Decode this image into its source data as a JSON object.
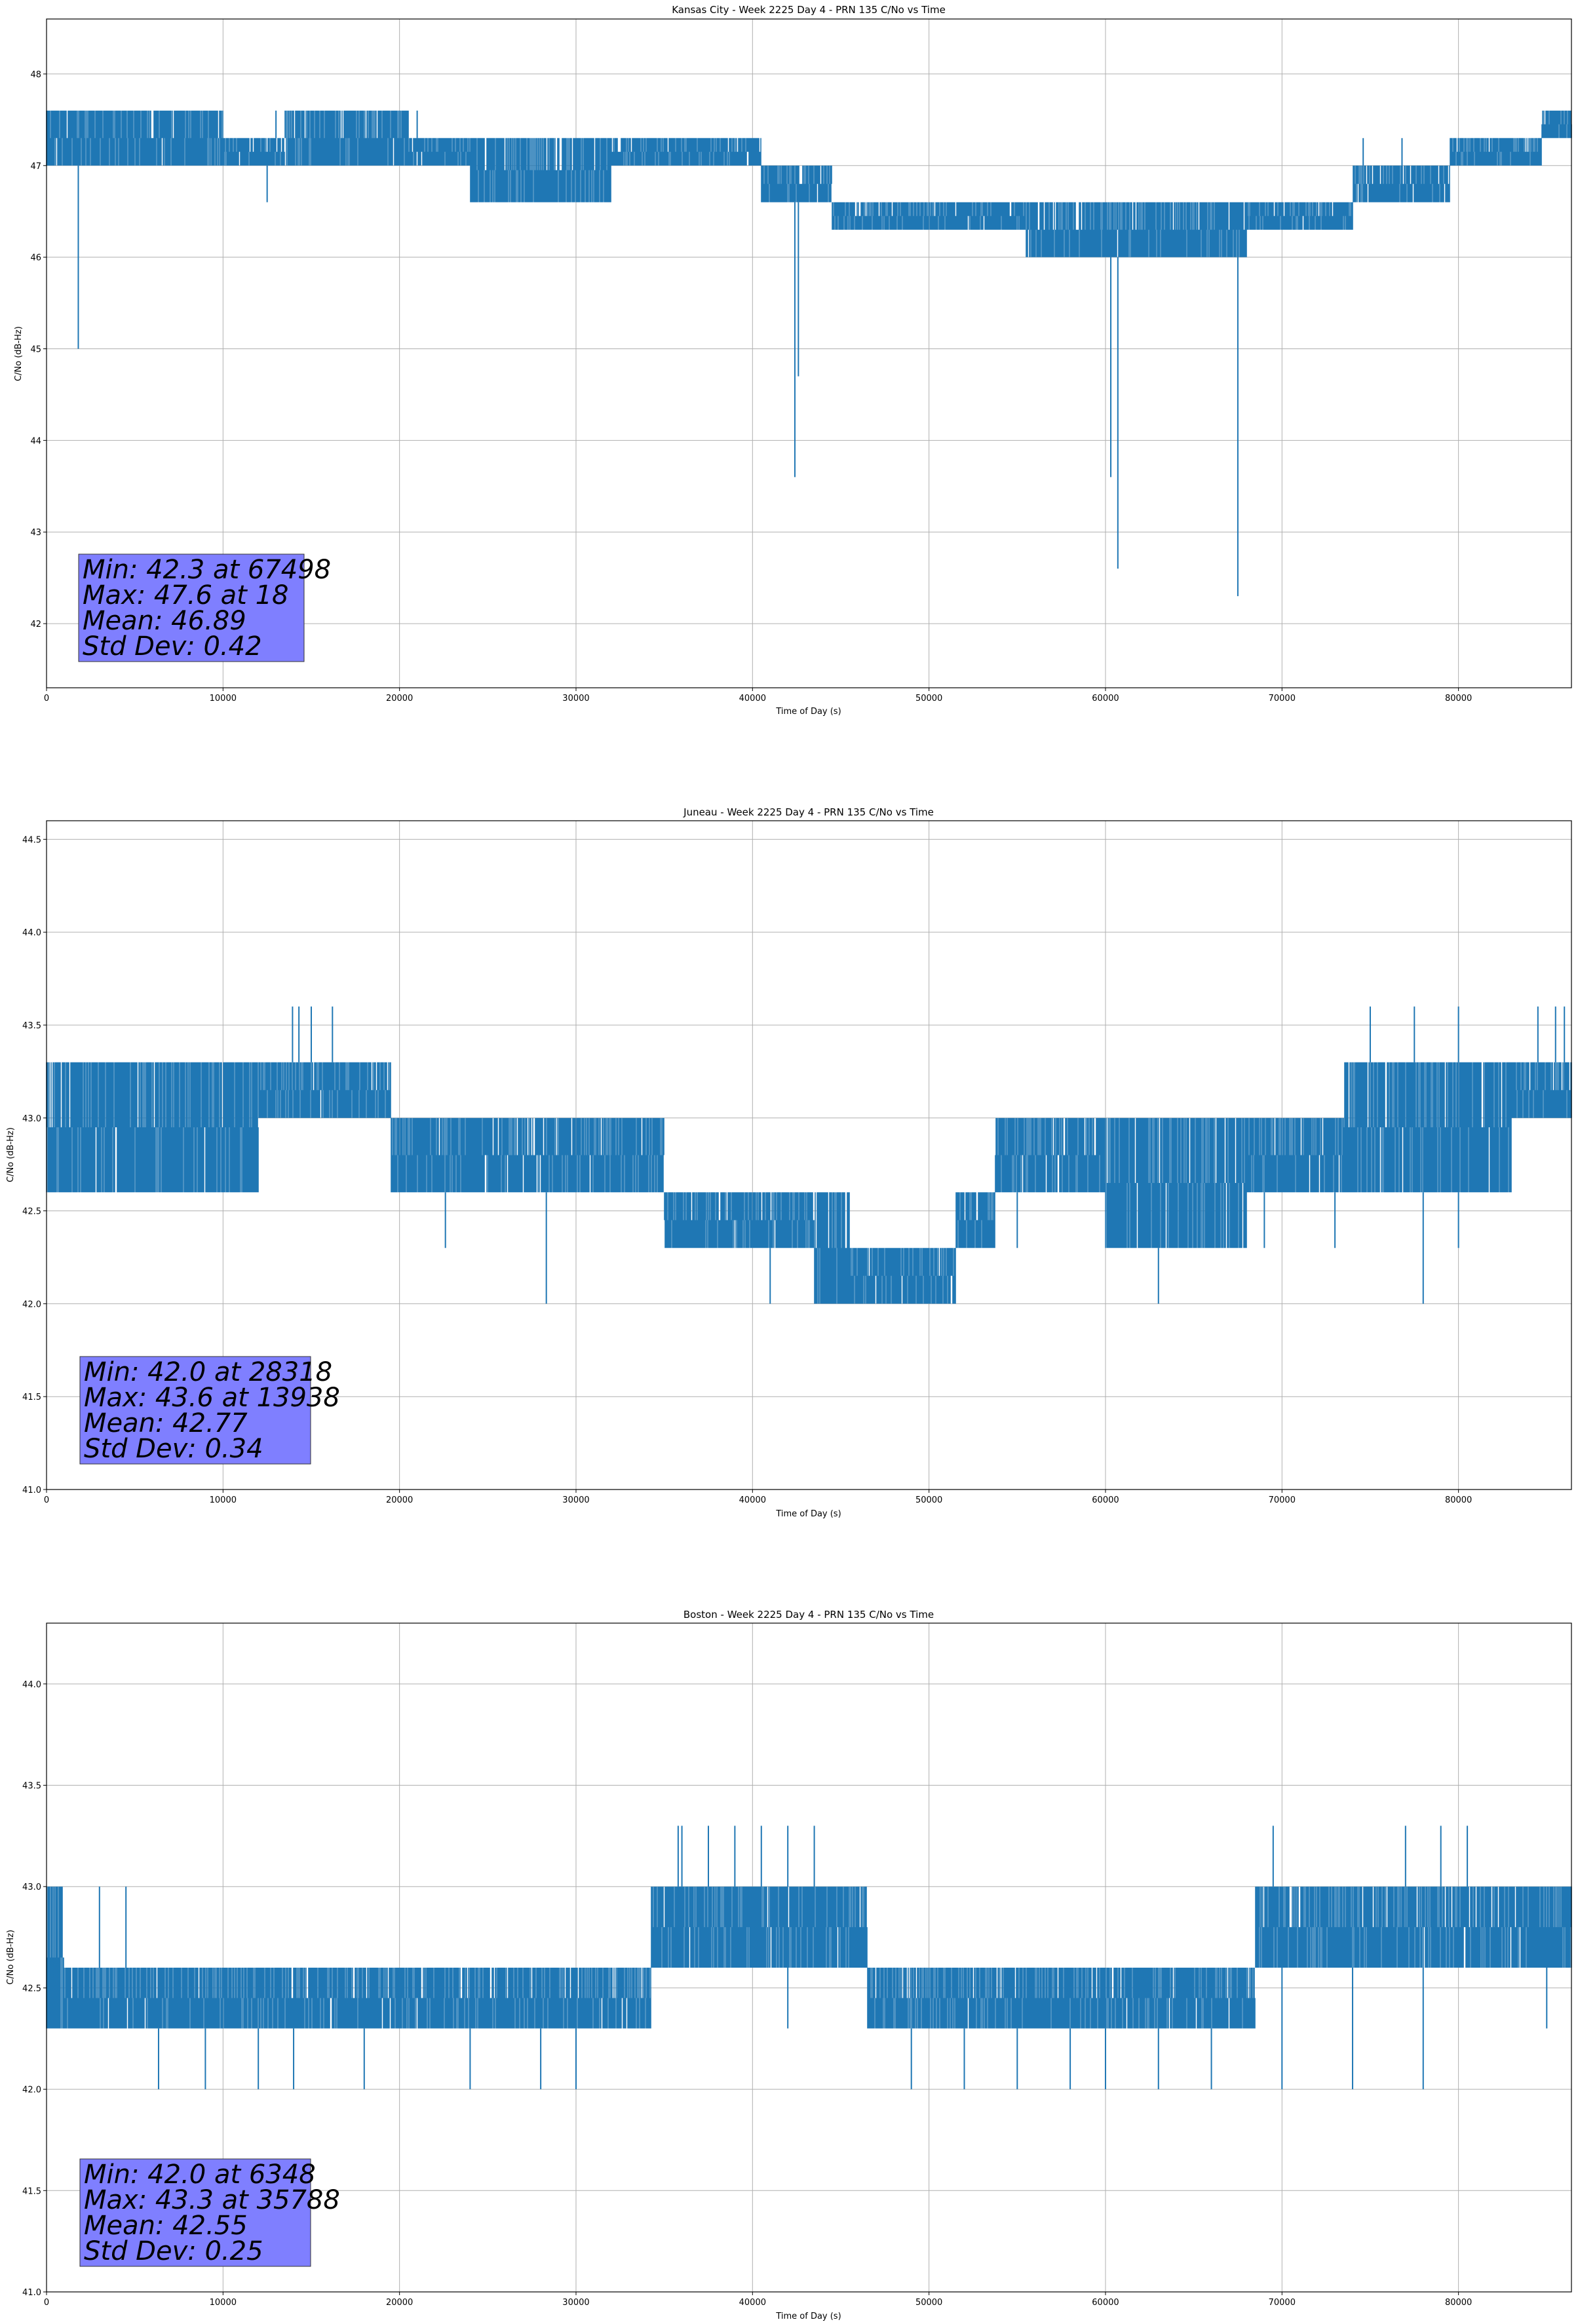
{
  "colors": {
    "series": "#1f77b4",
    "statbox": "#8080ff"
  },
  "chart_data": [
    {
      "type": "line",
      "title": "Kansas City - Week 2225 Day 4 - PRN 135 C/No vs Time",
      "xlabel": "Time of Day (s)",
      "ylabel": "C/No (dB-Hz)",
      "xlim": [
        0,
        86400
      ],
      "ylim": [
        41.3,
        48.6
      ],
      "xticks": [
        0,
        10000,
        20000,
        30000,
        40000,
        50000,
        60000,
        70000,
        80000
      ],
      "yticks": [
        42,
        43,
        44,
        45,
        46,
        47,
        48
      ],
      "grid": true,
      "stats": [
        "Min: 42.3 at 67498",
        "Max: 47.6 at 18",
        "Mean: 46.89",
        "Std Dev: 0.42"
      ],
      "envelope": [
        [
          0,
          47.0,
          47.6
        ],
        [
          2000,
          47.0,
          47.6
        ],
        [
          5000,
          47.0,
          47.6
        ],
        [
          8000,
          47.0,
          47.6
        ],
        [
          12000,
          47.0,
          47.3
        ],
        [
          15000,
          47.0,
          47.6
        ],
        [
          19000,
          47.0,
          47.6
        ],
        [
          22000,
          47.0,
          47.3
        ],
        [
          26000,
          46.6,
          47.3
        ],
        [
          30000,
          46.6,
          47.3
        ],
        [
          34000,
          47.0,
          47.3
        ],
        [
          38000,
          47.0,
          47.3
        ],
        [
          40000,
          47.0,
          47.3
        ],
        [
          41000,
          46.6,
          47.0
        ],
        [
          44000,
          46.6,
          47.0
        ],
        [
          45000,
          46.3,
          46.6
        ],
        [
          50000,
          46.3,
          46.6
        ],
        [
          53000,
          46.3,
          46.6
        ],
        [
          58000,
          46.0,
          46.6
        ],
        [
          62000,
          46.0,
          46.6
        ],
        [
          67000,
          46.0,
          46.6
        ],
        [
          69000,
          46.3,
          46.6
        ],
        [
          73000,
          46.3,
          46.6
        ],
        [
          75000,
          46.6,
          47.0
        ],
        [
          79000,
          46.6,
          47.0
        ],
        [
          80000,
          47.0,
          47.3
        ],
        [
          83000,
          47.0,
          47.3
        ],
        [
          86400,
          47.3,
          47.6
        ]
      ],
      "spikes": [
        [
          1800,
          45.0
        ],
        [
          12500,
          46.6
        ],
        [
          42400,
          43.6
        ],
        [
          42600,
          44.7
        ],
        [
          60300,
          43.6
        ],
        [
          60700,
          42.6
        ],
        [
          67498,
          42.3
        ],
        [
          56000,
          46.0
        ],
        [
          64000,
          46.0
        ]
      ],
      "hi_spikes": [
        [
          2000,
          47.6
        ],
        [
          13000,
          47.6
        ],
        [
          21000,
          47.6
        ],
        [
          74600,
          47.3
        ],
        [
          76800,
          47.3
        ]
      ]
    },
    {
      "type": "line",
      "title": "Juneau - Week 2225 Day 4 - PRN 135 C/No vs Time",
      "xlabel": "Time of Day (s)",
      "ylabel": "C/No (dB-Hz)",
      "xlim": [
        0,
        86400
      ],
      "ylim": [
        41.0,
        44.6
      ],
      "xticks": [
        0,
        10000,
        20000,
        30000,
        40000,
        50000,
        60000,
        70000,
        80000
      ],
      "yticks": [
        41.0,
        41.5,
        42.0,
        42.5,
        43.0,
        43.5,
        44.0,
        44.5
      ],
      "grid": true,
      "stats": [
        "Min: 42.0 at 28318",
        "Max: 43.6 at 13938",
        "Mean: 42.77",
        "Std Dev: 0.34"
      ],
      "envelope": [
        [
          0,
          42.6,
          43.3
        ],
        [
          3000,
          42.6,
          43.3
        ],
        [
          6000,
          42.6,
          43.3
        ],
        [
          9000,
          42.6,
          43.3
        ],
        [
          11000,
          42.6,
          43.3
        ],
        [
          13000,
          43.0,
          43.3
        ],
        [
          15000,
          43.0,
          43.3
        ],
        [
          19000,
          43.0,
          43.3
        ],
        [
          20000,
          42.6,
          43.0
        ],
        [
          24000,
          42.6,
          43.0
        ],
        [
          28000,
          42.6,
          43.0
        ],
        [
          32000,
          42.6,
          43.0
        ],
        [
          34000,
          42.6,
          43.0
        ],
        [
          36000,
          42.3,
          42.6
        ],
        [
          40000,
          42.3,
          42.6
        ],
        [
          43000,
          42.3,
          42.6
        ],
        [
          44000,
          42.0,
          42.6
        ],
        [
          47000,
          42.0,
          42.3
        ],
        [
          50000,
          42.0,
          42.3
        ],
        [
          53000,
          42.3,
          42.6
        ],
        [
          54500,
          42.6,
          43.0
        ],
        [
          58000,
          42.6,
          43.0
        ],
        [
          62000,
          42.3,
          43.0
        ],
        [
          66000,
          42.3,
          43.0
        ],
        [
          70000,
          42.6,
          43.0
        ],
        [
          73000,
          42.6,
          43.0
        ],
        [
          74000,
          42.6,
          43.3
        ],
        [
          78000,
          42.6,
          43.3
        ],
        [
          82000,
          42.6,
          43.3
        ],
        [
          84000,
          43.0,
          43.3
        ],
        [
          86400,
          43.0,
          43.3
        ]
      ],
      "spikes": [
        [
          28318,
          42.0
        ],
        [
          22600,
          42.3
        ],
        [
          36000,
          42.3
        ],
        [
          41000,
          42.0
        ],
        [
          44000,
          42.0
        ],
        [
          47000,
          42.0
        ],
        [
          51000,
          42.0
        ],
        [
          55000,
          42.3
        ],
        [
          63000,
          42.0
        ],
        [
          69000,
          42.3
        ],
        [
          73000,
          42.3
        ],
        [
          78000,
          42.0
        ],
        [
          80000,
          42.3
        ]
      ],
      "hi_spikes": [
        [
          13938,
          43.6
        ],
        [
          14300,
          43.6
        ],
        [
          15000,
          43.6
        ],
        [
          16200,
          43.6
        ],
        [
          75000,
          43.6
        ],
        [
          77500,
          43.6
        ],
        [
          80000,
          43.6
        ],
        [
          84500,
          43.6
        ],
        [
          85500,
          43.6
        ],
        [
          86000,
          43.6
        ]
      ]
    },
    {
      "type": "line",
      "title": "Boston - Week 2225 Day 4 - PRN 135 C/No vs Time",
      "xlabel": "Time of Day (s)",
      "ylabel": "C/No (dB-Hz)",
      "xlim": [
        0,
        86400
      ],
      "ylim": [
        41.0,
        44.3
      ],
      "xticks": [
        0,
        10000,
        20000,
        30000,
        40000,
        50000,
        60000,
        70000,
        80000
      ],
      "yticks": [
        41.0,
        41.5,
        42.0,
        42.5,
        43.0,
        43.5,
        44.0
      ],
      "grid": true,
      "stats": [
        "Min: 42.0 at 6348",
        "Max: 43.3 at 35788",
        "Mean: 42.55",
        "Std Dev: 0.25"
      ],
      "envelope": [
        [
          0,
          42.3,
          43.0
        ],
        [
          500,
          42.3,
          43.0
        ],
        [
          1500,
          42.3,
          42.6
        ],
        [
          4000,
          42.3,
          42.6
        ],
        [
          8000,
          42.3,
          42.6
        ],
        [
          12000,
          42.3,
          42.6
        ],
        [
          16000,
          42.3,
          42.6
        ],
        [
          20000,
          42.3,
          42.6
        ],
        [
          24000,
          42.3,
          42.6
        ],
        [
          28000,
          42.3,
          42.6
        ],
        [
          32000,
          42.3,
          42.6
        ],
        [
          34000,
          42.3,
          42.6
        ],
        [
          34500,
          42.6,
          43.0
        ],
        [
          38000,
          42.6,
          43.0
        ],
        [
          42000,
          42.6,
          43.0
        ],
        [
          44000,
          42.6,
          43.0
        ],
        [
          46000,
          42.6,
          43.0
        ],
        [
          47000,
          42.3,
          42.6
        ],
        [
          52000,
          42.3,
          42.6
        ],
        [
          56000,
          42.3,
          42.6
        ],
        [
          60000,
          42.3,
          42.6
        ],
        [
          64000,
          42.3,
          42.6
        ],
        [
          68000,
          42.3,
          42.6
        ],
        [
          69000,
          42.6,
          43.0
        ],
        [
          74000,
          42.6,
          43.0
        ],
        [
          78000,
          42.6,
          43.0
        ],
        [
          82000,
          42.6,
          43.0
        ],
        [
          86400,
          42.6,
          43.0
        ]
      ],
      "spikes": [
        [
          6348,
          42.0
        ],
        [
          9000,
          42.0
        ],
        [
          12000,
          42.0
        ],
        [
          14000,
          42.0
        ],
        [
          18000,
          42.0
        ],
        [
          24000,
          42.0
        ],
        [
          28000,
          42.0
        ],
        [
          30000,
          42.0
        ],
        [
          42000,
          42.3
        ],
        [
          49000,
          42.0
        ],
        [
          52000,
          42.0
        ],
        [
          55000,
          42.0
        ],
        [
          58000,
          42.0
        ],
        [
          60000,
          42.0
        ],
        [
          63000,
          42.0
        ],
        [
          66000,
          42.0
        ],
        [
          70000,
          42.0
        ],
        [
          74000,
          42.0
        ],
        [
          78000,
          42.0
        ],
        [
          85000,
          42.3
        ]
      ],
      "hi_spikes": [
        [
          500,
          43.0
        ],
        [
          3000,
          43.0
        ],
        [
          4500,
          43.0
        ],
        [
          35788,
          43.3
        ],
        [
          36000,
          43.3
        ],
        [
          37500,
          43.3
        ],
        [
          39000,
          43.3
        ],
        [
          40500,
          43.3
        ],
        [
          42000,
          43.3
        ],
        [
          43500,
          43.3
        ],
        [
          69500,
          43.3
        ],
        [
          77000,
          43.3
        ],
        [
          79000,
          43.3
        ],
        [
          80500,
          43.3
        ]
      ]
    }
  ]
}
